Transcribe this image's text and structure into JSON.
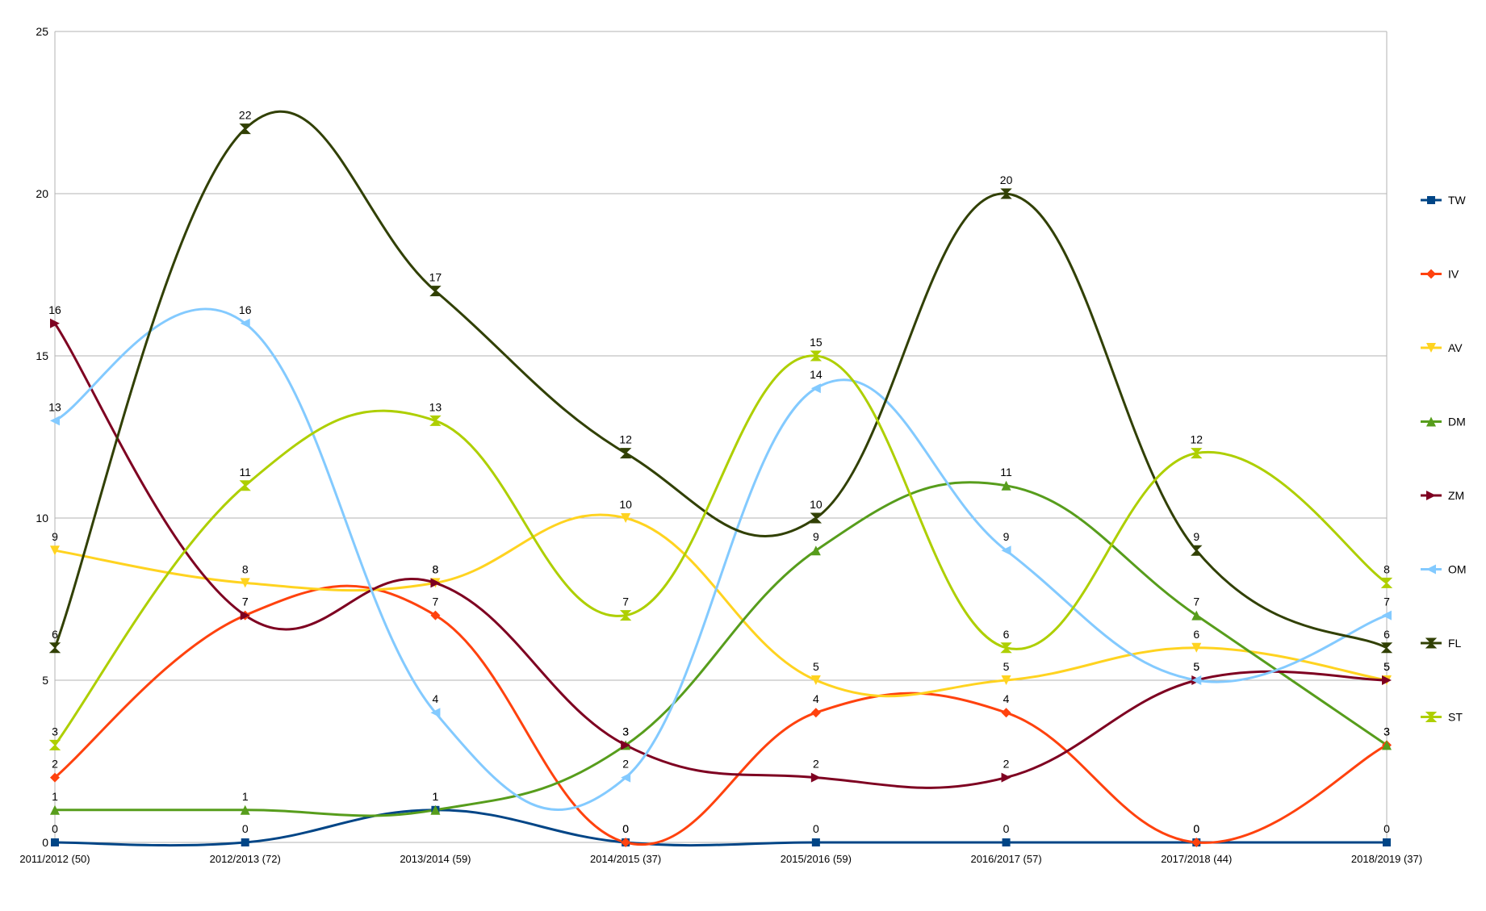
{
  "chart_data": {
    "type": "line",
    "smooth": true,
    "categories": [
      "2011/2012 (50)",
      "2012/2013 (72)",
      "2013/2014 (59)",
      "2014/2015 (37)",
      "2015/2016 (59)",
      "2016/2017 (57)",
      "2017/2018 (44)",
      "2018/2019 (37)"
    ],
    "ylim": [
      0,
      25
    ],
    "yticks": [
      0,
      5,
      10,
      15,
      20,
      25
    ],
    "grid": true,
    "legend_position": "right",
    "series": [
      {
        "name": "TW",
        "color": "#004586",
        "marker": "square",
        "values": [
          0,
          0,
          1,
          0,
          0,
          0,
          0,
          0
        ]
      },
      {
        "name": "IV",
        "color": "#ff420e",
        "marker": "diamond",
        "values": [
          2,
          7,
          7,
          0,
          4,
          4,
          0,
          3
        ]
      },
      {
        "name": "AV",
        "color": "#ffd320",
        "marker": "tri-down",
        "values": [
          9,
          8,
          8,
          10,
          5,
          5,
          6,
          5
        ]
      },
      {
        "name": "DM",
        "color": "#579d1c",
        "marker": "tri-up",
        "values": [
          1,
          1,
          1,
          3,
          9,
          11,
          7,
          3
        ]
      },
      {
        "name": "ZM",
        "color": "#7e0021",
        "marker": "tri-right",
        "values": [
          16,
          7,
          8,
          3,
          2,
          2,
          5,
          5
        ]
      },
      {
        "name": "OM",
        "color": "#83caff",
        "marker": "tri-left",
        "values": [
          13,
          16,
          4,
          2,
          14,
          9,
          5,
          7
        ]
      },
      {
        "name": "FL",
        "color": "#314004",
        "marker": "bowtie-h",
        "values": [
          6,
          22,
          17,
          12,
          10,
          20,
          9,
          6
        ]
      },
      {
        "name": "ST",
        "color": "#aecf00",
        "marker": "bowtie-v",
        "values": [
          3,
          11,
          13,
          7,
          15,
          6,
          12,
          8
        ]
      }
    ]
  }
}
